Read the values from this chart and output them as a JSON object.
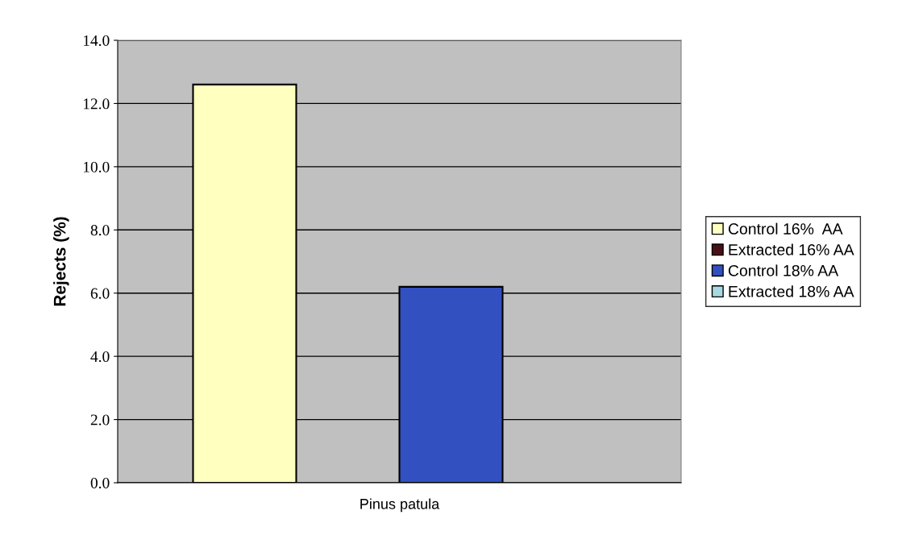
{
  "chart_data": {
    "type": "bar",
    "ylabel": "Rejects (%)",
    "categories": [
      "Pinus patula"
    ],
    "series": [
      {
        "name": "Control 16%  AA",
        "color": "#ffffc0",
        "values": [
          12.6
        ]
      },
      {
        "name": "Extracted 16% AA",
        "color": "#4a1018",
        "values": [
          null
        ]
      },
      {
        "name": "Control 18% AA",
        "color": "#3350c0",
        "values": [
          6.2
        ]
      },
      {
        "name": "Extracted 18% AA",
        "color": "#a8d8e0",
        "values": [
          null
        ]
      }
    ],
    "ylim": [
      0,
      14
    ],
    "yticks": [
      {
        "value": 0,
        "label": "0.0"
      },
      {
        "value": 2,
        "label": "2.0"
      },
      {
        "value": 4,
        "label": "4.0"
      },
      {
        "value": 6,
        "label": "6.0"
      },
      {
        "value": 8,
        "label": "8.0"
      },
      {
        "value": 10,
        "label": "10.0"
      },
      {
        "value": 12,
        "label": "12.0"
      },
      {
        "value": 14,
        "label": "14.0"
      }
    ],
    "grid": "y",
    "legend": "right"
  }
}
